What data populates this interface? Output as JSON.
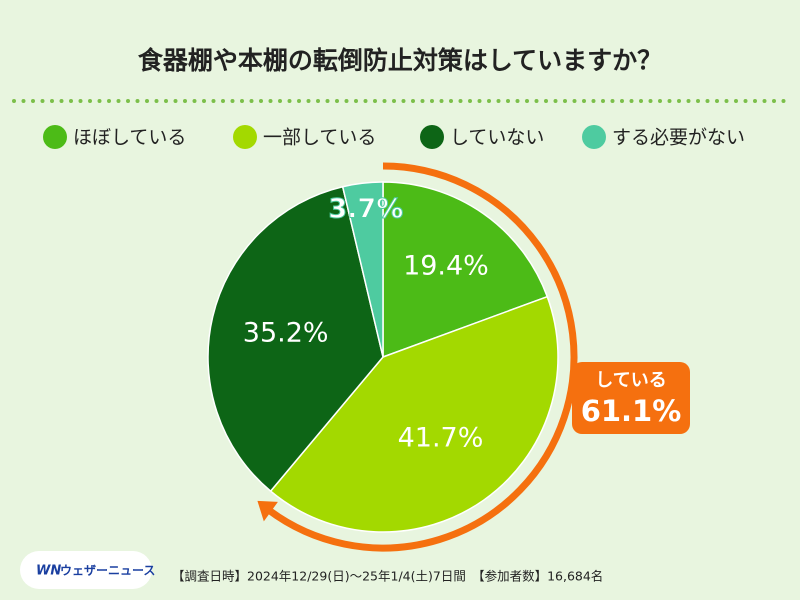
{
  "chart_data": {
    "type": "pie",
    "title": "食器棚や本棚の転倒防止対策はしていますか？",
    "categories": [
      "ほぼしている",
      "一部している",
      "していない",
      "する必要がない"
    ],
    "values": [
      19.4,
      41.7,
      35.2,
      3.7
    ],
    "value_labels": [
      "19.4%",
      "41.7%",
      "35.2%",
      "3.7%"
    ],
    "colors": [
      "#4cbb17",
      "#a3d900",
      "#0d6516",
      "#4ecba0"
    ],
    "annotation": {
      "text": "している",
      "value": 61.1,
      "label": "61.1%",
      "color": "#f5700f"
    },
    "logo": "ウェザーニュース",
    "source": "【調査日時】2024年12/29(日)～25年1/4(土)7日間　【参加者数】16,684名"
  }
}
